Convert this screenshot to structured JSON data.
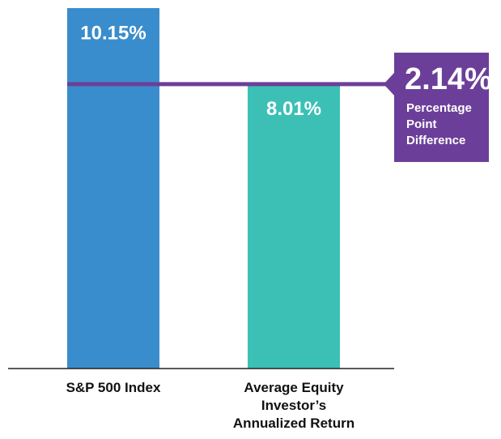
{
  "chart_data": {
    "type": "bar",
    "categories": [
      "S&P 500 Index",
      "Average Equity Investor’s Annualized Return"
    ],
    "series": [
      {
        "name": null,
        "colors": [
          "#3a8dcc",
          "#3cc0b5"
        ],
        "values": [
          10.15,
          8.01
        ],
        "value_labels": [
          "10.15%",
          "8.01%"
        ]
      }
    ],
    "annotation": {
      "value": 2.14,
      "label": "2.14%",
      "text": [
        "Percentage",
        "Point",
        "Difference"
      ],
      "color": "#6b3f99"
    }
  }
}
